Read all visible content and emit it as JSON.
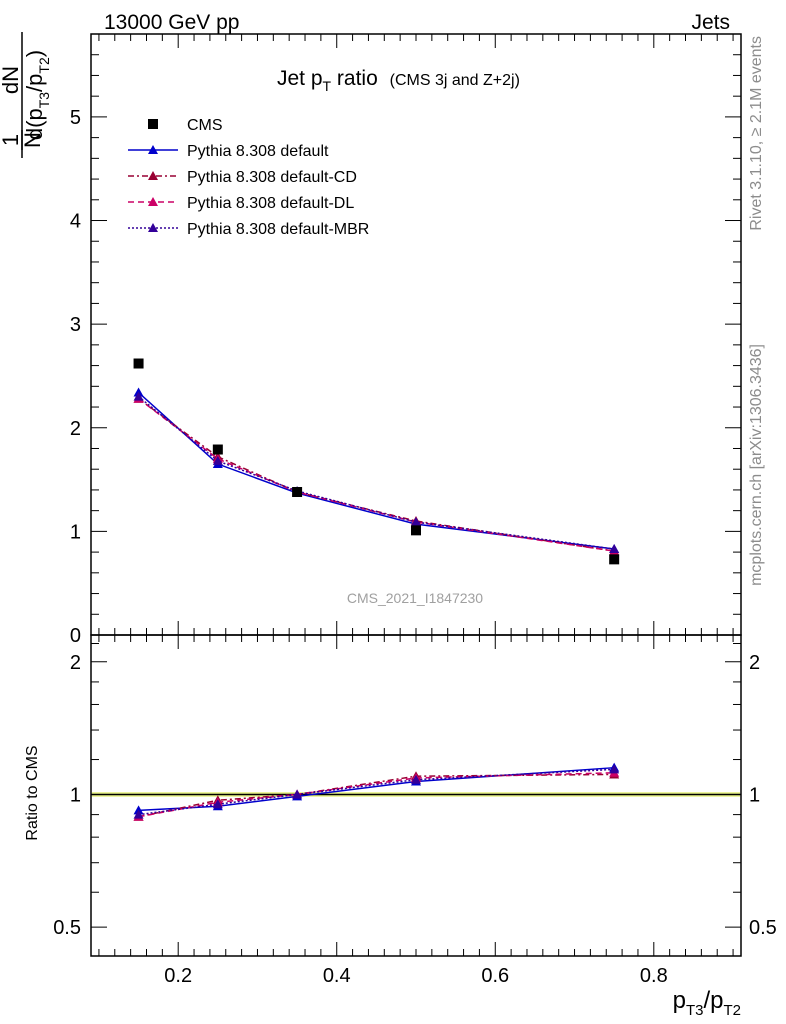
{
  "header": {
    "left": "13000 GeV pp",
    "right": "Jets"
  },
  "side_labels": {
    "rivet": "Rivet 3.1.10, ≥ 2.1M events",
    "mcplots": "mcplots.cern.ch [arXiv:1306.3436]"
  },
  "chart_data": {
    "type": "line",
    "title_main": "Jet p",
    "title_sub": "T",
    "title_rest": " ratio",
    "title_note": "(CMS 3j and Z+2j)",
    "watermark": "CMS_2021_I1847230",
    "xlabel": {
      "p": "p",
      "s1": "T3",
      "slash": "/p",
      "s2": "T2"
    },
    "ylabel": {
      "num": "1",
      "den": "N",
      "dN": "dN",
      "d": "d(p",
      "s1": "T3",
      "slash": "/p",
      "s2": "T2",
      "close": ")"
    },
    "ratio_ylabel": "Ratio to CMS",
    "xlim": [
      0.09,
      0.91
    ],
    "ylim": [
      0,
      5.8
    ],
    "ratio_ylim": [
      0.43,
      2.3
    ],
    "ratio_log": true,
    "x_ticks": [
      0.2,
      0.4,
      0.6,
      0.8
    ],
    "x_tick_labels": [
      "0.2",
      "0.4",
      "0.6",
      "0.8"
    ],
    "y_ticks": [
      0,
      1,
      2,
      3,
      4,
      5
    ],
    "y_tick_labels": [
      "0",
      "1",
      "2",
      "3",
      "4",
      "5"
    ],
    "ratio_ticks": [
      0.5,
      1,
      2
    ],
    "ratio_tick_labels": [
      "0.5",
      "1",
      "2"
    ],
    "legend_position": "top-left",
    "data": {
      "name": "CMS",
      "x": [
        0.15,
        0.25,
        0.35,
        0.5,
        0.75
      ],
      "y": [
        2.62,
        1.79,
        1.38,
        1.01,
        0.73
      ],
      "color": "#000000"
    },
    "series": [
      {
        "name": "Pythia 8.308 default",
        "color": "#0000cc",
        "dash": "",
        "y": [
          2.34,
          1.65,
          1.37,
          1.07,
          0.83
        ],
        "ratio": [
          0.92,
          0.94,
          0.99,
          1.07,
          1.15
        ]
      },
      {
        "name": "Pythia 8.308 default-CD",
        "color": "#990033",
        "dash": "6,3,2,3",
        "y": [
          2.28,
          1.72,
          1.38,
          1.1,
          0.81
        ],
        "ratio": [
          0.89,
          0.97,
          1.0,
          1.1,
          1.11
        ]
      },
      {
        "name": "Pythia 8.308 default-DL",
        "color": "#cc0066",
        "dash": "6,4",
        "y": [
          2.28,
          1.7,
          1.38,
          1.09,
          0.81
        ],
        "ratio": [
          0.89,
          0.96,
          1.0,
          1.09,
          1.12
        ]
      },
      {
        "name": "Pythia 8.308 default-MBR",
        "color": "#330099",
        "dash": "2,2",
        "y": [
          2.3,
          1.68,
          1.39,
          1.09,
          0.83
        ],
        "ratio": [
          0.9,
          0.95,
          1.0,
          1.08,
          1.14
        ]
      }
    ]
  }
}
